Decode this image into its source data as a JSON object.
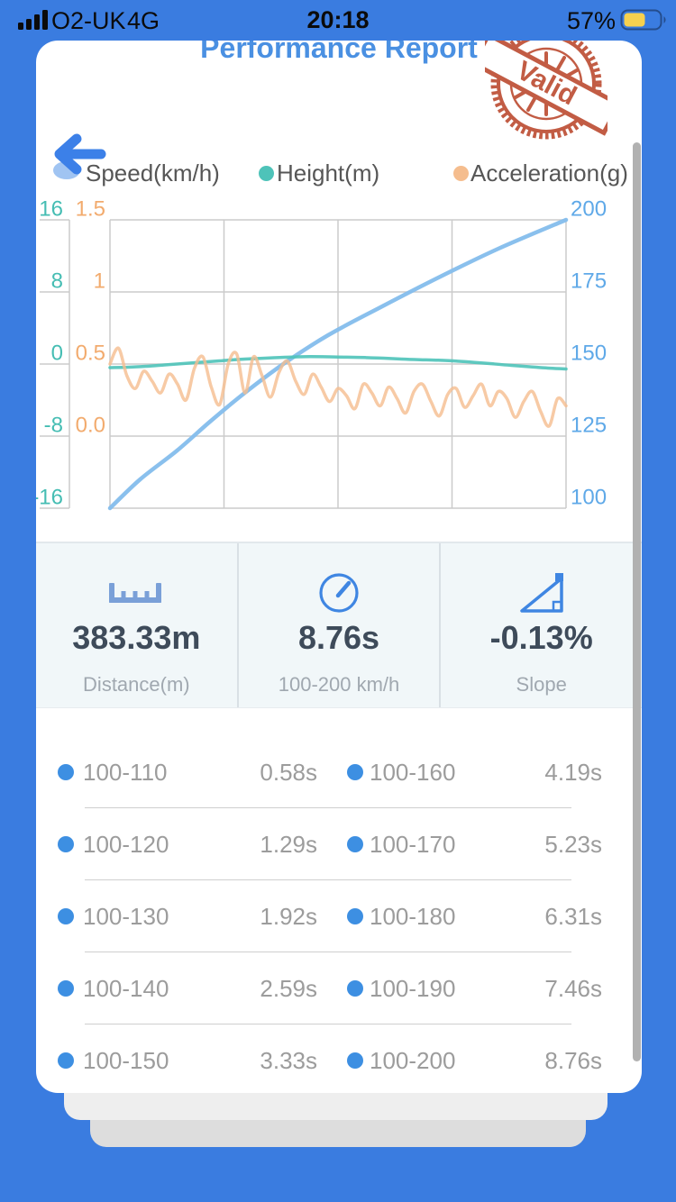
{
  "status_bar": {
    "carrier": "O2-UK",
    "network": "4G",
    "time": "20:18",
    "battery_percent": "57%",
    "battery_level": 0.57,
    "signal_bars": 4
  },
  "header": {
    "title": "Performance Report",
    "stamp_text": "Valid"
  },
  "legend": [
    {
      "label": "Speed(km/h)",
      "color": "#84bdec"
    },
    {
      "label": "Height(m)",
      "color": "#4ec3b9"
    },
    {
      "label": "Acceleration(g)",
      "color": "#f5bd8e"
    }
  ],
  "chart_data": {
    "type": "line",
    "title": "",
    "xlabel": "",
    "x_range_seconds": [
      0,
      8.76
    ],
    "grid": true,
    "axes": {
      "height": {
        "side": "left-outer",
        "color": "#45bdb3",
        "ticks": [
          "16",
          "8",
          "0",
          "-8",
          "-16"
        ],
        "range": [
          -16,
          16
        ]
      },
      "acceleration": {
        "side": "left-inner",
        "color": "#f2ab6e",
        "ticks": [
          "1.5",
          "1",
          "0.5",
          "0.0"
        ],
        "range": [
          -0.5,
          1.5
        ]
      },
      "speed": {
        "side": "right",
        "color": "#5fa9e8",
        "ticks": [
          "200",
          "175",
          "150",
          "125",
          "100"
        ],
        "range": [
          100,
          200
        ]
      }
    },
    "series": [
      {
        "name": "Speed(km/h)",
        "axis": "speed",
        "color": "#84bdec",
        "width": 4.5,
        "opacity": 0.95,
        "points": [
          [
            0,
            100
          ],
          [
            0.58,
            110
          ],
          [
            1.29,
            120
          ],
          [
            1.92,
            130
          ],
          [
            2.59,
            140
          ],
          [
            3.33,
            150
          ],
          [
            4.19,
            160
          ],
          [
            5.23,
            170
          ],
          [
            6.31,
            180
          ],
          [
            7.46,
            190
          ],
          [
            8.76,
            200
          ]
        ]
      },
      {
        "name": "Height(m)",
        "axis": "height",
        "color": "#4ec3b9",
        "width": 3.5,
        "opacity": 0.9,
        "values": [
          -0.4,
          -0.35,
          -0.25,
          -0.1,
          0.05,
          0.2,
          0.35,
          0.5,
          0.6,
          0.7,
          0.78,
          0.82,
          0.8,
          0.76,
          0.72,
          0.65,
          0.55,
          0.48,
          0.42,
          0.32,
          0.18,
          0.02,
          -0.15,
          -0.3,
          -0.45,
          -0.55
        ]
      },
      {
        "name": "Acceleration(g)",
        "axis": "acceleration",
        "color": "#f5bd8e",
        "width": 3.5,
        "opacity": 0.8,
        "values": [
          0.5,
          0.61,
          0.42,
          0.33,
          0.45,
          0.38,
          0.3,
          0.43,
          0.36,
          0.25,
          0.47,
          0.55,
          0.34,
          0.22,
          0.5,
          0.57,
          0.3,
          0.55,
          0.42,
          0.27,
          0.44,
          0.52,
          0.38,
          0.29,
          0.43,
          0.34,
          0.24,
          0.33,
          0.28,
          0.19,
          0.36,
          0.3,
          0.21,
          0.34,
          0.26,
          0.16,
          0.31,
          0.36,
          0.24,
          0.14,
          0.29,
          0.33,
          0.2,
          0.28,
          0.36,
          0.21,
          0.31,
          0.26,
          0.13,
          0.24,
          0.31,
          0.17,
          0.07,
          0.26,
          0.21
        ]
      }
    ]
  },
  "stats": [
    {
      "icon": "ruler-icon",
      "value": "383.33m",
      "label": "Distance(m)"
    },
    {
      "icon": "speedometer-icon",
      "value": "8.76s",
      "label": "100-200 km/h"
    },
    {
      "icon": "slope-icon",
      "value": "-0.13%",
      "label": "Slope"
    }
  ],
  "splits": {
    "rows": [
      {
        "left_label": "100-110",
        "left_value": "0.58s",
        "right_label": "100-160",
        "right_value": "4.19s"
      },
      {
        "left_label": "100-120",
        "left_value": "1.29s",
        "right_label": "100-170",
        "right_value": "5.23s"
      },
      {
        "left_label": "100-130",
        "left_value": "1.92s",
        "right_label": "100-180",
        "right_value": "6.31s"
      },
      {
        "left_label": "100-140",
        "left_value": "2.59s",
        "right_label": "100-190",
        "right_value": "7.46s"
      },
      {
        "left_label": "100-150",
        "left_value": "3.33s",
        "right_label": "100-200",
        "right_value": "8.76s"
      }
    ]
  },
  "colors": {
    "background_blue": "#3a7ce0",
    "title_blue": "#4a90e2",
    "stamp_red": "#bd4f35",
    "battery_yellow": "#f7d14e",
    "grid_grey": "#cbcbcb",
    "bullet_blue": "#3d8fe2"
  }
}
